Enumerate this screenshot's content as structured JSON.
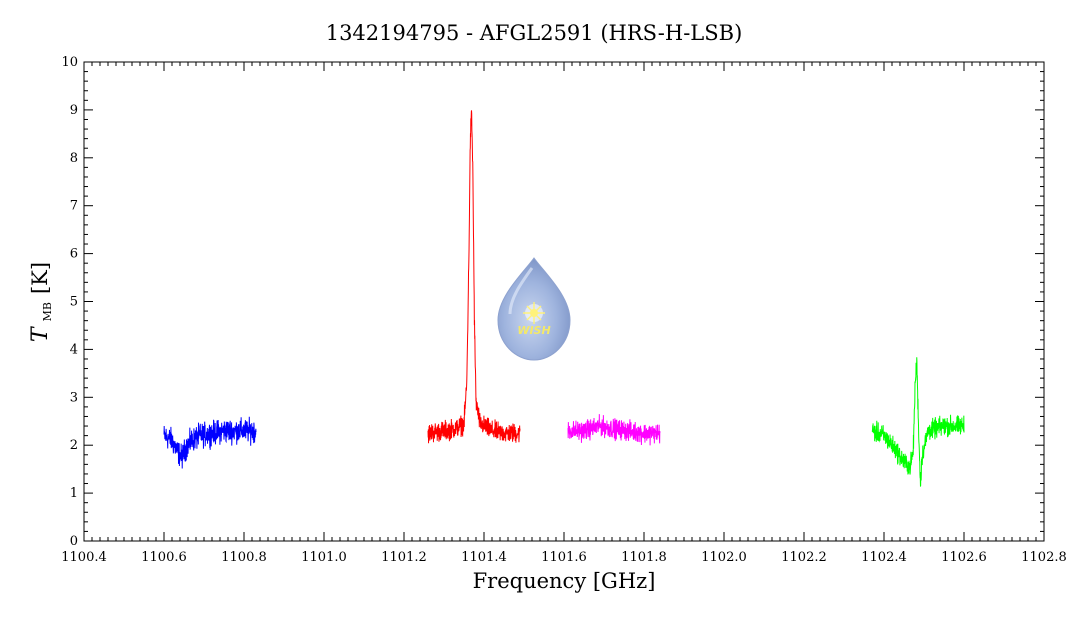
{
  "chart_data": {
    "type": "line",
    "title": "1342194795 - AFGL2591 (HRS-H-LSB)",
    "xlabel": "Frequency [GHz]",
    "ylabel_main": "T",
    "ylabel_sub": "MB",
    "ylabel_unit": "[K]",
    "xlim": [
      1100.4,
      1102.8
    ],
    "ylim": [
      0,
      10
    ],
    "xticks": [
      1100.4,
      1100.6,
      1100.8,
      1101.0,
      1101.2,
      1101.4,
      1101.6,
      1101.8,
      1102.0,
      1102.2,
      1102.4,
      1102.6,
      1102.8
    ],
    "xtick_labels": [
      "1100.4",
      "1100.6",
      "1100.8",
      "1101.0",
      "1101.2",
      "1101.4",
      "1101.6",
      "1101.8",
      "1102.0",
      "1102.2",
      "1102.4",
      "1102.6",
      "1102.8"
    ],
    "yticks": [
      0,
      1,
      2,
      3,
      4,
      5,
      6,
      7,
      8,
      9,
      10
    ],
    "ytick_labels": [
      "0",
      "1",
      "2",
      "3",
      "4",
      "5",
      "6",
      "7",
      "8",
      "9",
      "10"
    ],
    "grid": false,
    "series": [
      {
        "color": "#0000ff",
        "x": [
          1100.6,
          1100.62,
          1100.635,
          1100.645,
          1100.655,
          1100.67,
          1100.69,
          1100.72,
          1100.75,
          1100.78,
          1100.81,
          1100.83
        ],
        "y": [
          2.2,
          2.1,
          1.85,
          1.75,
          1.95,
          2.1,
          2.2,
          2.25,
          2.3,
          2.3,
          2.3,
          2.3
        ],
        "noise": 0.12
      },
      {
        "color": "#ff0000",
        "x": [
          1101.26,
          1101.3,
          1101.33,
          1101.35,
          1101.357,
          1101.362,
          1101.366,
          1101.369,
          1101.372,
          1101.376,
          1101.38,
          1101.39,
          1101.42,
          1101.45,
          1101.49
        ],
        "y": [
          2.25,
          2.3,
          2.35,
          2.45,
          3.3,
          5.8,
          8.5,
          8.9,
          7.8,
          4.6,
          2.9,
          2.45,
          2.3,
          2.25,
          2.25
        ],
        "noise": 0.1
      },
      {
        "color": "#ff00ff",
        "x": [
          1101.61,
          1101.65,
          1101.69,
          1101.72,
          1101.76,
          1101.8,
          1101.84
        ],
        "y": [
          2.3,
          2.3,
          2.4,
          2.35,
          2.3,
          2.25,
          2.25
        ],
        "noise": 0.1
      },
      {
        "color": "#00ff00",
        "x": [
          1102.37,
          1102.4,
          1102.43,
          1102.45,
          1102.465,
          1102.473,
          1102.478,
          1102.482,
          1102.487,
          1102.491,
          1102.495,
          1102.51,
          1102.55,
          1102.6
        ],
        "y": [
          2.3,
          2.2,
          1.9,
          1.65,
          1.55,
          1.85,
          3.3,
          3.75,
          2.2,
          1.2,
          1.75,
          2.3,
          2.4,
          2.4
        ],
        "noise": 0.1
      }
    ]
  },
  "logo": {
    "text": "WISH"
  }
}
